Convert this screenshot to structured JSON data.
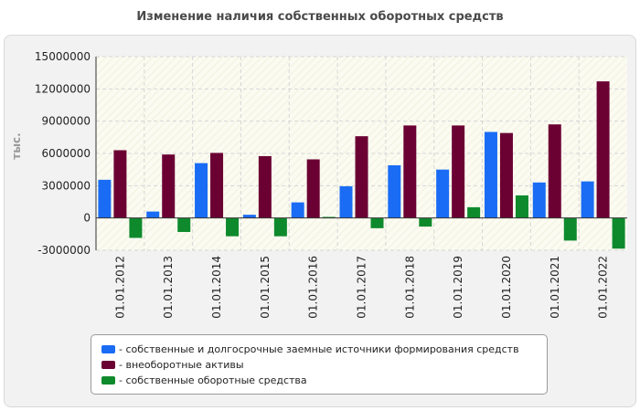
{
  "chart_data": {
    "type": "bar",
    "title": "Изменение наличия собственных оборотных средств",
    "ylabel": "тыс.",
    "xlabel": "",
    "ylim": [
      -3000000,
      15000000
    ],
    "yticks": [
      15000000,
      12000000,
      9000000,
      6000000,
      3000000,
      0,
      -3000000
    ],
    "grid": true,
    "legend_position": "bottom",
    "categories": [
      "01.01.2012",
      "01.01.2013",
      "01.01.2014",
      "01.01.2015",
      "01.01.2016",
      "01.01.2017",
      "01.01.2018",
      "01.01.2019",
      "01.01.2020",
      "01.01.2021",
      "01.01.2022"
    ],
    "series": [
      {
        "name": "- собственные и долгосрочные заемные источники формирования средств",
        "color": "#1a6cf5",
        "values": [
          3550000,
          600000,
          5100000,
          300000,
          1450000,
          2950000,
          4900000,
          4500000,
          8000000,
          3300000,
          3400000
        ]
      },
      {
        "name": "- внеоборотные активы",
        "color": "#6b0033",
        "values": [
          6300000,
          5900000,
          6050000,
          5750000,
          5450000,
          7600000,
          8600000,
          8600000,
          7900000,
          8700000,
          12700000
        ]
      },
      {
        "name": "- собственные оборотные средства",
        "color": "#0e8a2c",
        "values": [
          -1850000,
          -1300000,
          -1700000,
          -1700000,
          100000,
          -950000,
          -800000,
          1000000,
          2100000,
          -2100000,
          -2850000
        ]
      }
    ]
  }
}
